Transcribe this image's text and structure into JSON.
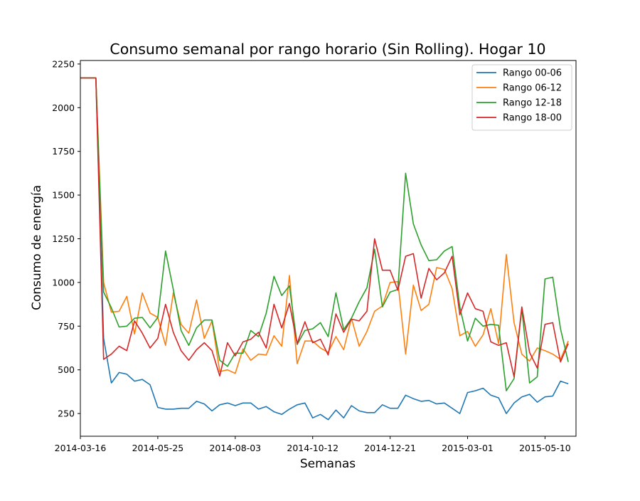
{
  "chart_data": {
    "type": "line",
    "title": "Consumo semanal por rango horario (Sin Rolling). Hogar 10",
    "xlabel": "Semanas",
    "ylabel": "Consumo de energía",
    "x_start": "2014-03-16",
    "x_interval": "weekly",
    "xlim": [
      0,
      64
    ],
    "ylim": [
      120,
      2270
    ],
    "x_ticks": [
      {
        "i": 0,
        "label": "2014-03-16"
      },
      {
        "i": 10,
        "label": "2014-05-25"
      },
      {
        "i": 20,
        "label": "2014-08-03"
      },
      {
        "i": 30,
        "label": "2014-10-12"
      },
      {
        "i": 40,
        "label": "2014-12-21"
      },
      {
        "i": 50,
        "label": "2015-03-01"
      },
      {
        "i": 60,
        "label": "2015-05-10"
      }
    ],
    "y_ticks": [
      250,
      500,
      750,
      1000,
      1250,
      1500,
      1750,
      2000,
      2250
    ],
    "grid": false,
    "legend": "top-right",
    "series": [
      {
        "name": "Rango 00-06",
        "color": "#1f77b4",
        "values": [
          2170,
          2170,
          2170,
          680,
          425,
          485,
          475,
          435,
          445,
          415,
          285,
          275,
          275,
          280,
          280,
          320,
          305,
          265,
          300,
          310,
          295,
          310,
          310,
          275,
          290,
          260,
          245,
          275,
          300,
          310,
          225,
          245,
          215,
          270,
          225,
          295,
          265,
          255,
          255,
          300,
          280,
          280,
          355,
          335,
          320,
          325,
          305,
          310,
          280,
          250,
          370,
          380,
          395,
          355,
          340,
          250,
          310,
          345,
          360,
          315,
          345,
          350,
          435,
          420
        ]
      },
      {
        "name": "Rango 06-12",
        "color": "#ff7f0e",
        "values": [
          2170,
          2170,
          2170,
          1000,
          830,
          835,
          920,
          705,
          940,
          825,
          800,
          640,
          940,
          760,
          710,
          900,
          680,
          780,
          490,
          500,
          480,
          620,
          555,
          590,
          585,
          695,
          635,
          1040,
          535,
          665,
          665,
          625,
          600,
          690,
          615,
          795,
          635,
          720,
          835,
          865,
          1000,
          1005,
          590,
          985,
          840,
          875,
          1085,
          1075,
          965,
          695,
          720,
          635,
          700,
          850,
          650,
          1160,
          770,
          590,
          550,
          625,
          610,
          590,
          560,
          665
        ]
      },
      {
        "name": "Rango 12-18",
        "color": "#2ca02c",
        "values": [
          2170,
          2170,
          2170,
          945,
          855,
          745,
          750,
          795,
          800,
          740,
          800,
          1180,
          960,
          725,
          640,
          740,
          785,
          785,
          555,
          520,
          595,
          595,
          725,
          690,
          825,
          1035,
          925,
          980,
          645,
          725,
          735,
          770,
          690,
          940,
          730,
          795,
          890,
          970,
          1190,
          860,
          945,
          960,
          1625,
          1335,
          1215,
          1125,
          1130,
          1180,
          1205,
          860,
          665,
          795,
          750,
          760,
          755,
          380,
          450,
          850,
          425,
          460,
          1020,
          1030,
          735,
          545
        ]
      },
      {
        "name": "Rango 18-00",
        "color": "#d62728",
        "values": [
          2170,
          2170,
          2170,
          560,
          590,
          635,
          610,
          780,
          710,
          625,
          680,
          875,
          715,
          610,
          555,
          615,
          655,
          610,
          465,
          655,
          580,
          660,
          675,
          715,
          625,
          875,
          740,
          880,
          650,
          775,
          655,
          675,
          585,
          820,
          715,
          790,
          780,
          835,
          1250,
          1070,
          1070,
          955,
          1150,
          1165,
          910,
          1080,
          1015,
          1055,
          1150,
          815,
          940,
          850,
          835,
          660,
          640,
          655,
          460,
          860,
          600,
          510,
          760,
          770,
          545,
          650
        ]
      }
    ]
  }
}
